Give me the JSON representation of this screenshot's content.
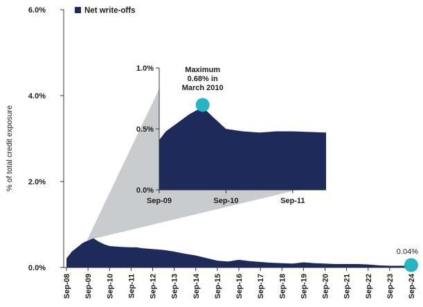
{
  "chart_data": [
    {
      "type": "area",
      "ylabel": "% of total credit exposure",
      "ylim": [
        0,
        6
      ],
      "yticks": [
        "0.0%",
        "2.0%",
        "4.0%",
        "6.0%"
      ],
      "yticks_values": [
        0,
        2,
        4,
        6
      ],
      "categories": [
        "Sep-08",
        "Sep-09",
        "Sep-10",
        "Sep-11",
        "Sep-12",
        "Sep-13",
        "Sep-14",
        "Sep-15",
        "Sep-16",
        "Sep-17",
        "Sep-18",
        "Sep-19",
        "Sep-20",
        "Sep-21",
        "Sep-22",
        "Sep-23",
        "Sep-24"
      ],
      "legend": {
        "position": "top-left",
        "label": "Net write-offs"
      },
      "series": [
        {
          "name": "Net write-offs",
          "color": "#1e2a5a",
          "x": [
            0.0,
            0.25,
            0.5,
            0.75,
            1.0,
            1.25,
            1.5,
            1.75,
            2.0,
            2.5,
            3.0,
            3.25,
            3.5,
            4.0,
            4.5,
            5.0,
            5.5,
            6.0,
            6.5,
            7.0,
            7.5,
            8.0,
            8.5,
            9.0,
            9.5,
            10.0,
            10.5,
            11.0,
            11.5,
            12.0,
            12.5,
            13.0,
            13.5,
            14.0,
            14.5,
            15.0,
            15.5,
            16.0
          ],
          "values": [
            0.21,
            0.37,
            0.47,
            0.57,
            0.63,
            0.68,
            0.6,
            0.54,
            0.5,
            0.48,
            0.47,
            0.47,
            0.45,
            0.43,
            0.41,
            0.37,
            0.32,
            0.28,
            0.22,
            0.16,
            0.14,
            0.18,
            0.15,
            0.13,
            0.11,
            0.1,
            0.09,
            0.12,
            0.1,
            0.09,
            0.08,
            0.08,
            0.08,
            0.07,
            0.05,
            0.04,
            0.04,
            0.04
          ]
        }
      ],
      "annotations": [
        {
          "type": "marker",
          "color": "#27b5c6",
          "x": 16,
          "value": 0.04,
          "label": "0.04%"
        }
      ]
    },
    {
      "type": "area",
      "ylim": [
        0,
        1
      ],
      "yticks": [
        "0.0%",
        "0.5%",
        "1.0%"
      ],
      "yticks_values": [
        0,
        0.5,
        1.0
      ],
      "categories": [
        "Sep-09",
        "Sep-10",
        "Sep-11"
      ],
      "series": [
        {
          "name": "Net write-offs",
          "color": "#1e2a5a",
          "x": [
            0.0,
            0.1,
            0.25,
            0.45,
            0.55,
            0.65,
            0.8,
            1.0,
            1.25,
            1.5,
            1.75,
            2.0,
            2.5
          ],
          "values": [
            0.41,
            0.48,
            0.54,
            0.62,
            0.65,
            0.68,
            0.6,
            0.5,
            0.48,
            0.47,
            0.48,
            0.48,
            0.47
          ]
        }
      ],
      "annotations": [
        {
          "type": "marker",
          "color": "#27b5c6",
          "x": 0.65,
          "value": 0.68,
          "label_lines": [
            "Maximum",
            "0.68% in",
            "March 2010"
          ]
        }
      ]
    }
  ]
}
